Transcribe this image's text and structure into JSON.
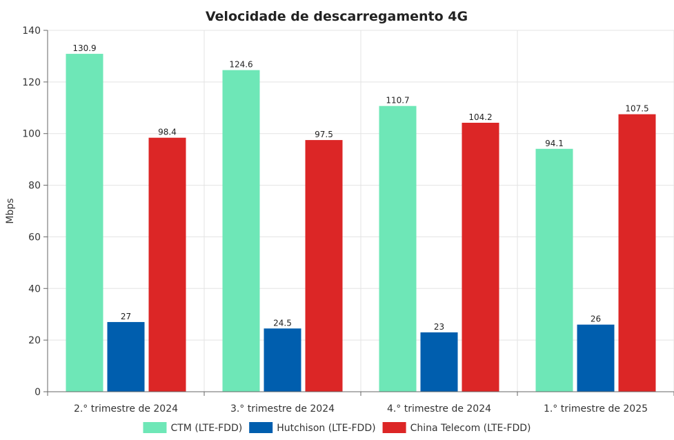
{
  "chart_data": {
    "type": "bar",
    "title": "Velocidade de descarregamento 4G",
    "xlabel": "",
    "ylabel": "Mbps",
    "ylim": [
      0,
      140
    ],
    "yticks": [
      0,
      20,
      40,
      60,
      80,
      100,
      120,
      140
    ],
    "grid": true,
    "legend_position": "bottom",
    "categories": [
      "2.°  trimestre de 2024",
      "3.°  trimestre de 2024",
      "4.°  trimestre de 2024",
      "1.°  trimestre de 2025"
    ],
    "series": [
      {
        "name": "CTM (LTE-FDD)",
        "color": "#6ee7b7",
        "values": [
          130.9,
          124.6,
          110.7,
          94.1
        ]
      },
      {
        "name": "Hutchison (LTE-FDD)",
        "color": "#005eae",
        "values": [
          27,
          24.5,
          23,
          26
        ]
      },
      {
        "name": "China Telecom (LTE-FDD)",
        "color": "#dc2626",
        "values": [
          98.4,
          97.5,
          104.2,
          107.5
        ]
      }
    ]
  }
}
